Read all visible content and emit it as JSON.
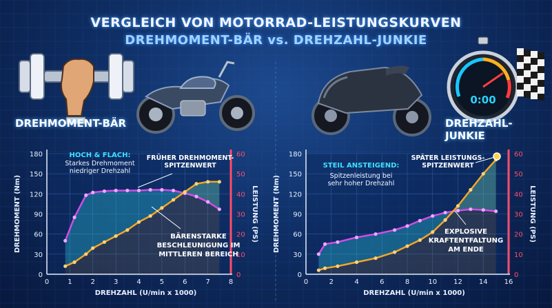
{
  "header": {
    "title": "VERGLEICH VON MOTORRAD-LEISTUNGSKURVEN",
    "subtitle": "DREHMOMENT-BÄR vs. DREHZAHL-JUNKIE"
  },
  "labels": {
    "left": "DREHMOMENT-BÄR",
    "right": "DREHZAHL-JUNKIE",
    "stopwatch_readout": "0:00"
  },
  "colors": {
    "background": "#0f2f66",
    "torque": "#d24ce8",
    "power": "#f5a623",
    "torque_axis": "#e8f0ff",
    "power_axis": "#ff4d6a",
    "annotation_cyan": "#3fe0ff"
  },
  "chart_data": [
    {
      "type": "line",
      "xlabel": "DREHZAHL (U/min x 1000)",
      "ylabel": "DREHMOMENT (Nm)",
      "ylabel_right": "LEISTUNG (PS)",
      "xlim": [
        0,
        8
      ],
      "ylim": [
        0,
        180
      ],
      "ylim_right": [
        0,
        60
      ],
      "x_ticks": [
        "0",
        "1",
        "2",
        "3",
        "4",
        "5",
        "6",
        "7",
        "8"
      ],
      "y_ticks": [
        "0",
        "30",
        "60",
        "90",
        "120",
        "150",
        "180"
      ],
      "y_right_ticks": [
        "0",
        "10",
        "20",
        "30",
        "40",
        "50",
        "60"
      ],
      "series": [
        {
          "name": "DREHMOMENT",
          "axis": "left",
          "x": [
            0.8,
            1.2,
            1.7,
            2.0,
            2.5,
            3.0,
            3.5,
            4.0,
            4.5,
            5.0,
            5.5,
            6.0,
            6.5,
            7.0,
            7.5
          ],
          "y": [
            50,
            85,
            118,
            122,
            124,
            125,
            125,
            125,
            126,
            126,
            125,
            121,
            116,
            108,
            97
          ]
        },
        {
          "name": "LEISTUNG",
          "axis": "right",
          "x": [
            0.8,
            1.2,
            1.7,
            2.0,
            2.5,
            3.0,
            3.5,
            4.0,
            4.5,
            5.0,
            5.5,
            6.0,
            6.5,
            7.0,
            7.5
          ],
          "y": [
            4,
            6,
            10,
            13,
            16,
            19,
            22,
            26,
            29,
            33,
            37,
            41,
            45,
            46,
            46
          ]
        }
      ],
      "annotations": [
        {
          "title": "HOCH & FLACH:",
          "text": "Starkes Drehmoment ab niedriger Drehzahl"
        },
        {
          "title": "FRÜHER DREHMOMENT-SPITZENWERT",
          "text": ""
        },
        {
          "title": "BÄRENSTARKE BESCHLEUNIGUNG IM MITTLEREN BEREICH",
          "text": ""
        }
      ]
    },
    {
      "type": "line",
      "xlabel": "DREHZAHL (U/min x 1000)",
      "ylabel": "DREHMOMENT (Nm)",
      "ylabel_right": "LEISTUNG (PS)",
      "xlim": [
        0,
        16
      ],
      "ylim": [
        0,
        180
      ],
      "ylim_right": [
        0,
        60
      ],
      "x_ticks": [
        "0",
        "2",
        "4",
        "6",
        "8",
        "10",
        "12",
        "14",
        "16"
      ],
      "y_ticks": [
        "0",
        "30",
        "60",
        "90",
        "120",
        "150",
        "180"
      ],
      "y_right_ticks": [
        "0",
        "10",
        "20",
        "30",
        "40",
        "50",
        "60"
      ],
      "series": [
        {
          "name": "DREHMOMENT",
          "axis": "left",
          "x": [
            1,
            1.5,
            2.5,
            4,
            5.5,
            7,
            8,
            9,
            10,
            11,
            12,
            13,
            14,
            15
          ],
          "y": [
            30,
            45,
            48,
            55,
            60,
            66,
            72,
            80,
            87,
            92,
            95,
            97,
            96,
            94
          ]
        },
        {
          "name": "LEISTUNG",
          "axis": "right",
          "x": [
            1,
            1.5,
            2.5,
            4,
            5.5,
            7,
            8,
            9,
            10,
            11,
            12,
            13,
            14,
            15
          ],
          "y": [
            2,
            3,
            4,
            6,
            8,
            11,
            14,
            17,
            21,
            27,
            34,
            42,
            50,
            57
          ]
        }
      ],
      "annotations": [
        {
          "title": "STEIL ANSTEIGEND:",
          "text": "Spitzenleistung bei sehr hoher Drehzahl"
        },
        {
          "title": "SPÄTER LEISTUNGS-SPITZENWERT",
          "text": ""
        },
        {
          "title": "EXPLOSIVE KRAFTENTFALTUNG AM ENDE",
          "text": ""
        }
      ]
    }
  ]
}
